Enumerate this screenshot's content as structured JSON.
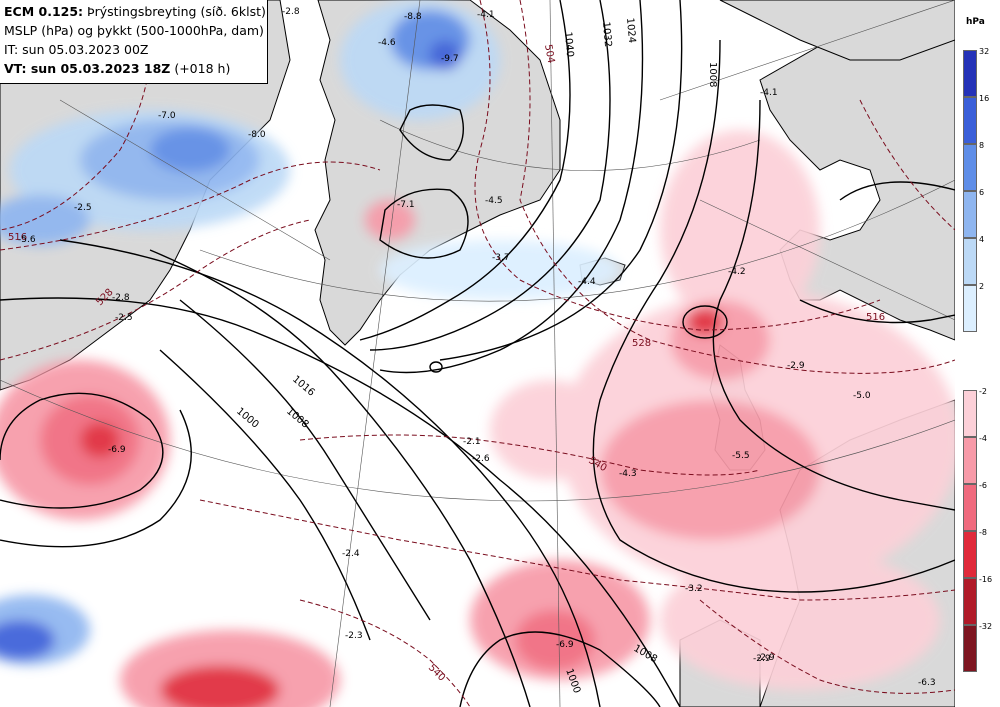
{
  "header": {
    "line1_bold": "ECM 0.125:",
    "line1_rest": " Þrýstingsbreyting (síð. 6klst)",
    "line2": "MSLP (hPa) og þykkt (500-1000hPa, dam)",
    "line3": "IT: sun 05.03.2023 00Z",
    "line4_bold": "VT: sun 05.03.2023 18Z",
    "line4_rest": " (+018 h)"
  },
  "legend": {
    "unit": "hPa",
    "positive": [
      {
        "label": "32",
        "color": "#2432b8"
      },
      {
        "label": "16",
        "color": "#3a5fd9"
      },
      {
        "label": "8",
        "color": "#5f8ee8"
      },
      {
        "label": "6",
        "color": "#8fb6f0"
      },
      {
        "label": "4",
        "color": "#bcd9f6"
      },
      {
        "label": "2",
        "color": "#dcefff"
      }
    ],
    "negative": [
      {
        "label": "-2",
        "color": "#fcd0d8"
      },
      {
        "label": "-4",
        "color": "#f79aa8"
      },
      {
        "label": "-6",
        "color": "#f06a7e"
      },
      {
        "label": "-8",
        "color": "#e02a3a"
      },
      {
        "label": "-16",
        "color": "#b01a28"
      },
      {
        "label": "-32",
        "color": "#7e1520"
      }
    ]
  },
  "map": {
    "land_color": "#d9d9d9",
    "isobar_labels": [
      "1016",
      "1000",
      "1008",
      "1040",
      "1032",
      "1024",
      "1008",
      "1000",
      "1008"
    ],
    "thickness_labels": [
      "504",
      "528",
      "528",
      "540",
      "540",
      "516",
      "516"
    ],
    "pressure_change_values": [
      "-2.8",
      "-7.0",
      "-8.0",
      "-2.5",
      "-5.6",
      "-2.5",
      "-6.9",
      "-2.1",
      "-2.6",
      "-2.4",
      "-2.3",
      "-8.8",
      "-9.7",
      "-4.6",
      "-7.1",
      "-4.5",
      "-3.7",
      "-4.4",
      "-4.1",
      "-4.2",
      "-2.9",
      "-5.0",
      "-4.3",
      "-5.5",
      "-2.9",
      "-3.2",
      "-6.9",
      "-2.9",
      "-6.3",
      "-4.1",
      "-2.8"
    ]
  }
}
